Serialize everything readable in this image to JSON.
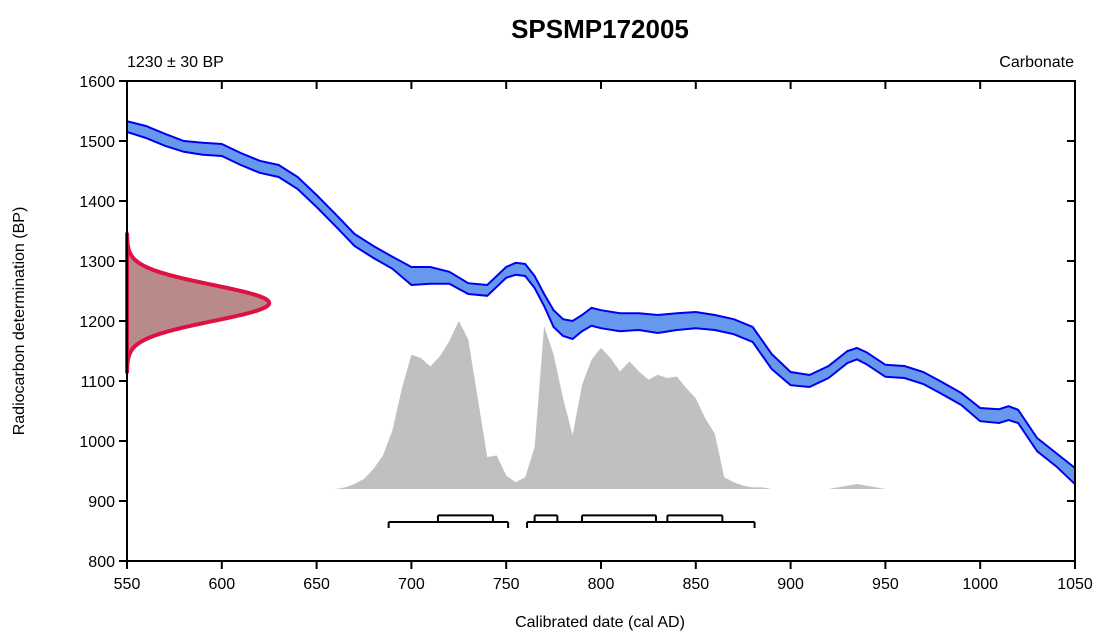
{
  "chart_data": {
    "type": "area",
    "title": "SPSMP172005",
    "sample_determination": "1230 ± 30 BP",
    "material": "Carbonate",
    "xlabel": "Calibrated date (cal AD)",
    "ylabel": "Radiocarbon determination (BP)",
    "xlim": [
      550,
      1050
    ],
    "ylim": [
      800,
      1600
    ],
    "x_ticks": [
      550,
      600,
      650,
      700,
      750,
      800,
      850,
      900,
      950,
      1000,
      1050
    ],
    "y_ticks": [
      800,
      900,
      1000,
      1100,
      1200,
      1300,
      1400,
      1500,
      1600
    ],
    "grid": false,
    "colors": {
      "curve_fill": "#6699ee",
      "curve_line": "#0000ee",
      "radiocarbon_fill": "#b88a8a",
      "radiocarbon_line": "#dd1144",
      "posterior_fill": "#c0c0c0",
      "range_bar": "#000000"
    },
    "calibration_curve": {
      "x": [
        550,
        560,
        570,
        580,
        590,
        600,
        610,
        620,
        630,
        640,
        650,
        660,
        670,
        680,
        690,
        700,
        710,
        720,
        730,
        740,
        750,
        755,
        760,
        765,
        770,
        775,
        780,
        785,
        790,
        795,
        800,
        810,
        820,
        830,
        840,
        850,
        860,
        870,
        880,
        890,
        900,
        910,
        920,
        930,
        935,
        940,
        950,
        960,
        970,
        980,
        990,
        1000,
        1010,
        1015,
        1020,
        1030,
        1040,
        1050
      ],
      "upper": [
        1533,
        1525,
        1512,
        1500,
        1497,
        1495,
        1480,
        1467,
        1460,
        1440,
        1410,
        1378,
        1345,
        1325,
        1307,
        1290,
        1290,
        1282,
        1263,
        1260,
        1290,
        1297,
        1295,
        1275,
        1245,
        1218,
        1203,
        1200,
        1210,
        1222,
        1218,
        1213,
        1213,
        1210,
        1213,
        1215,
        1210,
        1203,
        1190,
        1145,
        1115,
        1110,
        1125,
        1150,
        1155,
        1148,
        1127,
        1125,
        1115,
        1098,
        1080,
        1055,
        1053,
        1058,
        1052,
        1005,
        980,
        955
      ],
      "lower": [
        1515,
        1505,
        1492,
        1482,
        1477,
        1475,
        1460,
        1447,
        1440,
        1420,
        1390,
        1358,
        1325,
        1305,
        1287,
        1260,
        1262,
        1262,
        1245,
        1242,
        1272,
        1277,
        1275,
        1255,
        1225,
        1190,
        1175,
        1170,
        1183,
        1192,
        1188,
        1183,
        1185,
        1180,
        1185,
        1188,
        1185,
        1178,
        1165,
        1120,
        1093,
        1090,
        1105,
        1130,
        1136,
        1128,
        1107,
        1105,
        1095,
        1078,
        1060,
        1033,
        1030,
        1035,
        1030,
        983,
        958,
        928
      ]
    },
    "radiocarbon_distribution": {
      "mean_bp": 1230,
      "sd_bp": 30,
      "peak_cal_ad": 625
    },
    "posterior": {
      "baseline_bp": 920,
      "peak_bp": 1200,
      "x": [
        660,
        665,
        670,
        675,
        680,
        685,
        690,
        695,
        700,
        705,
        710,
        715,
        720,
        725,
        730,
        735,
        740,
        745,
        750,
        755,
        760,
        765,
        770,
        775,
        780,
        785,
        790,
        795,
        800,
        805,
        810,
        815,
        820,
        825,
        830,
        835,
        840,
        845,
        850,
        855,
        860,
        865,
        870,
        875,
        880,
        885,
        890,
        895,
        900,
        920,
        935,
        950,
        980
      ],
      "density": [
        0.0,
        0.01,
        0.03,
        0.06,
        0.12,
        0.2,
        0.35,
        0.6,
        0.8,
        0.78,
        0.73,
        0.79,
        0.88,
        1.0,
        0.89,
        0.54,
        0.19,
        0.2,
        0.08,
        0.04,
        0.07,
        0.25,
        0.97,
        0.8,
        0.54,
        0.32,
        0.62,
        0.77,
        0.84,
        0.78,
        0.7,
        0.76,
        0.7,
        0.65,
        0.68,
        0.66,
        0.67,
        0.6,
        0.54,
        0.42,
        0.33,
        0.07,
        0.04,
        0.02,
        0.01,
        0.01,
        0.0,
        0.0,
        0.0,
        0.0,
        0.03,
        0.0,
        0.0
      ]
    },
    "hpd_ranges": {
      "upper_row_bp": 876,
      "lower_row_bp": 865,
      "upper_row": [
        [
          714,
          743
        ],
        [
          765,
          777
        ],
        [
          790,
          829
        ],
        [
          835,
          864
        ]
      ],
      "lower_row": [
        [
          688,
          751
        ],
        [
          761,
          881
        ]
      ]
    }
  }
}
